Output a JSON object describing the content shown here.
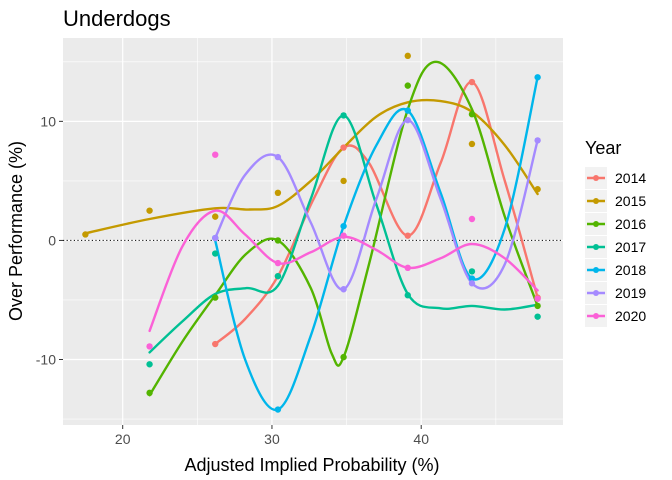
{
  "chart_data": {
    "type": "scatter",
    "title": "Underdogs",
    "xlabel": "Adjusted Implied Probability (%)",
    "ylabel": "Over Performance (%)",
    "xlim": [
      16,
      49.5
    ],
    "ylim": [
      -15.5,
      17
    ],
    "x_ticks": [
      20,
      30,
      40
    ],
    "y_ticks": [
      -10,
      0,
      10
    ],
    "x_tick_labels": [
      "20",
      "30",
      "40"
    ],
    "y_tick_labels": [
      "-10",
      "0",
      "10"
    ],
    "grid": true,
    "reference_line": {
      "y": 0,
      "style": "dotted"
    },
    "smoothing": "loess",
    "legend": {
      "title": "Year",
      "position": "right"
    },
    "series": [
      {
        "name": "2014",
        "color": "#F8766D",
        "points": [
          [
            26.2,
            -8.7
          ],
          [
            30.4,
            -3.0
          ],
          [
            34.8,
            7.8
          ],
          [
            39.1,
            0.4
          ],
          [
            43.4,
            13.3
          ],
          [
            47.8,
            -4.8
          ]
        ],
        "curve": [
          [
            26.2,
            -8.7
          ],
          [
            28.2,
            -6.6
          ],
          [
            30.4,
            -3.0
          ],
          [
            32.8,
            3.5
          ],
          [
            34.8,
            7.8
          ],
          [
            36.5,
            6.5
          ],
          [
            39.1,
            0.4
          ],
          [
            41.3,
            6.5
          ],
          [
            43.4,
            13.3
          ],
          [
            45.6,
            5.0
          ],
          [
            47.8,
            -4.8
          ]
        ]
      },
      {
        "name": "2015",
        "color": "#C49A00",
        "points": [
          [
            17.5,
            0.5
          ],
          [
            21.8,
            2.5
          ],
          [
            26.2,
            2.0
          ],
          [
            30.4,
            4.0
          ],
          [
            34.8,
            5.0
          ],
          [
            39.1,
            15.5
          ],
          [
            43.4,
            8.1
          ],
          [
            47.8,
            4.3
          ]
        ],
        "curve": [
          [
            17.5,
            0.6
          ],
          [
            21.8,
            1.8
          ],
          [
            26.2,
            2.7
          ],
          [
            28.5,
            2.6
          ],
          [
            30.4,
            2.9
          ],
          [
            32.6,
            5.0
          ],
          [
            34.8,
            7.8
          ],
          [
            37.0,
            10.4
          ],
          [
            39.1,
            11.6
          ],
          [
            41.3,
            11.7
          ],
          [
            43.4,
            10.8
          ],
          [
            45.6,
            8.0
          ],
          [
            47.8,
            3.9
          ]
        ]
      },
      {
        "name": "2016",
        "color": "#53B400",
        "points": [
          [
            21.8,
            -12.8
          ],
          [
            26.2,
            -4.8
          ],
          [
            30.4,
            0.0
          ],
          [
            34.8,
            -9.8
          ],
          [
            39.1,
            13.0
          ],
          [
            43.4,
            10.6
          ],
          [
            47.8,
            -5.5
          ]
        ],
        "curve": [
          [
            21.8,
            -13.0
          ],
          [
            24.0,
            -8.5
          ],
          [
            26.2,
            -4.6
          ],
          [
            28.3,
            -1.1
          ],
          [
            30.4,
            0.0
          ],
          [
            32.6,
            -4.0
          ],
          [
            34.0,
            -9.5
          ],
          [
            34.8,
            -9.8
          ],
          [
            36.5,
            -2.0
          ],
          [
            39.1,
            11.0
          ],
          [
            41.0,
            15.0
          ],
          [
            43.4,
            11.0
          ],
          [
            45.6,
            2.0
          ],
          [
            47.8,
            -5.5
          ]
        ]
      },
      {
        "name": "2017",
        "color": "#00C094",
        "points": [
          [
            21.8,
            -10.4
          ],
          [
            26.2,
            -1.1
          ],
          [
            30.4,
            -3.0
          ],
          [
            34.8,
            10.5
          ],
          [
            39.1,
            -4.6
          ],
          [
            43.4,
            -2.6
          ],
          [
            47.8,
            -6.4
          ]
        ],
        "curve": [
          [
            21.8,
            -9.4
          ],
          [
            24.0,
            -6.8
          ],
          [
            26.2,
            -4.5
          ],
          [
            28.3,
            -4.0
          ],
          [
            30.4,
            -3.8
          ],
          [
            32.6,
            3.5
          ],
          [
            34.8,
            10.5
          ],
          [
            37.0,
            3.0
          ],
          [
            39.1,
            -4.5
          ],
          [
            41.3,
            -5.7
          ],
          [
            43.4,
            -5.5
          ],
          [
            45.6,
            -5.8
          ],
          [
            47.8,
            -5.4
          ]
        ]
      },
      {
        "name": "2018",
        "color": "#00B6EB",
        "points": [
          [
            26.2,
            0.2
          ],
          [
            30.4,
            -14.2
          ],
          [
            34.8,
            1.2
          ],
          [
            39.1,
            10.9
          ],
          [
            43.4,
            -3.2
          ],
          [
            47.8,
            13.7
          ]
        ],
        "curve": [
          [
            26.2,
            0.0
          ],
          [
            28.2,
            -10.0
          ],
          [
            30.4,
            -14.2
          ],
          [
            32.6,
            -8.0
          ],
          [
            34.8,
            1.2
          ],
          [
            37.0,
            8.0
          ],
          [
            39.1,
            10.9
          ],
          [
            41.3,
            4.0
          ],
          [
            43.4,
            -3.2
          ],
          [
            45.6,
            1.0
          ],
          [
            47.8,
            13.7
          ]
        ]
      },
      {
        "name": "2019",
        "color": "#A58AFF",
        "points": [
          [
            26.2,
            0.2
          ],
          [
            30.4,
            7.0
          ],
          [
            34.8,
            -4.1
          ],
          [
            39.1,
            10.1
          ],
          [
            43.4,
            -3.6
          ],
          [
            47.8,
            8.4
          ]
        ],
        "curve": [
          [
            26.2,
            0.2
          ],
          [
            28.2,
            5.5
          ],
          [
            30.4,
            7.0
          ],
          [
            32.6,
            1.5
          ],
          [
            34.8,
            -4.1
          ],
          [
            37.0,
            3.5
          ],
          [
            39.1,
            10.1
          ],
          [
            41.3,
            3.5
          ],
          [
            43.4,
            -3.6
          ],
          [
            45.6,
            -2.0
          ],
          [
            47.8,
            8.4
          ]
        ]
      },
      {
        "name": "2020",
        "color": "#FB61D7",
        "points": [
          [
            21.8,
            -8.9
          ],
          [
            26.2,
            7.2
          ],
          [
            30.4,
            -1.9
          ],
          [
            34.8,
            0.4
          ],
          [
            39.1,
            -2.3
          ],
          [
            43.4,
            1.8
          ],
          [
            47.8,
            -4.9
          ]
        ],
        "curve": [
          [
            21.8,
            -7.6
          ],
          [
            24.0,
            -0.5
          ],
          [
            26.2,
            2.5
          ],
          [
            28.2,
            0.5
          ],
          [
            30.4,
            -1.9
          ],
          [
            32.6,
            -1.0
          ],
          [
            34.8,
            0.3
          ],
          [
            37.0,
            -0.8
          ],
          [
            39.1,
            -2.3
          ],
          [
            41.3,
            -1.5
          ],
          [
            43.4,
            -0.3
          ],
          [
            45.6,
            -1.5
          ],
          [
            47.8,
            -4.2
          ]
        ]
      }
    ]
  }
}
